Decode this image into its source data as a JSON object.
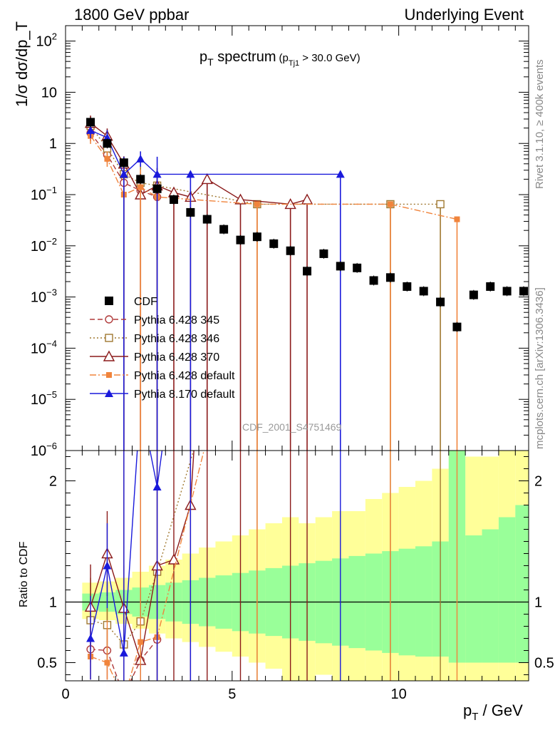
{
  "header": {
    "left": "1800 GeV ppbar",
    "right": "Underlying Event"
  },
  "side": {
    "top": "Rivet 3.1.10, ≥ 400k events",
    "bottom": "mcplots.cern.ch [arXiv:1306.3436]"
  },
  "watermark": "CDF_2001_S4751469",
  "chart_data": {
    "type": "scatter",
    "title": "p_T spectrum",
    "title_main": "p",
    "title_main_sub": "T",
    "title_rest": " spectrum",
    "title_cut_pre": "(p",
    "title_cut_sub": "Tj1",
    "title_cut_post": " > 30.0 GeV)",
    "xlabel_main": "p",
    "xlabel_sub": "T",
    "xlabel_post": " / GeV",
    "ylabel": "1/σ dσ/dp_T",
    "ratio_ylabel": "Ratio to CDF",
    "xlim": [
      0,
      13.9
    ],
    "ylim": [
      1e-06,
      200
    ],
    "ylog": true,
    "ratio_ylim": [
      0.35,
      2.25
    ],
    "x_ticks": [
      "0",
      "5",
      "10"
    ],
    "y_ticks": [
      {
        "m": "10",
        "e": "2"
      },
      {
        "m": "10",
        "e": ""
      },
      {
        "m": "1",
        "e": ""
      },
      {
        "m": "10",
        "e": "−1"
      },
      {
        "m": "10",
        "e": "−2"
      },
      {
        "m": "10",
        "e": "−3"
      },
      {
        "m": "10",
        "e": "−4"
      },
      {
        "m": "10",
        "e": "−5"
      },
      {
        "m": "10",
        "e": "−6"
      }
    ],
    "ratio_ticks": [
      "0.5",
      "1",
      "2"
    ],
    "legend_position": "lower-left",
    "cdf": {
      "name": "CDF",
      "x": [
        0.75,
        1.25,
        1.75,
        2.25,
        2.75,
        3.25,
        3.75,
        4.25,
        4.75,
        5.25,
        5.75,
        6.25,
        6.75,
        7.25,
        7.75,
        8.25,
        8.75,
        9.25,
        9.75,
        10.25,
        10.75,
        11.25,
        11.75,
        12.25,
        12.75,
        13.25,
        13.75
      ],
      "y": [
        2.6,
        1.0,
        0.42,
        0.2,
        0.13,
        0.08,
        0.045,
        0.033,
        0.021,
        0.013,
        0.015,
        0.011,
        0.008,
        0.0032,
        0.007,
        0.004,
        0.0037,
        0.0021,
        0.0024,
        0.0016,
        0.0013,
        0.0008,
        0.00026,
        0.0011,
        0.0016,
        0.0013,
        0.0013
      ],
      "stat1_low": [
        0.93,
        0.92,
        0.9,
        0.88,
        0.86,
        0.84,
        0.82,
        0.8,
        0.78,
        0.76,
        0.74,
        0.72,
        0.7,
        0.68,
        0.66,
        0.64,
        0.62,
        0.6,
        0.58,
        0.56,
        0.55,
        0.55,
        0.5,
        0.5,
        0.5,
        0.5,
        0.5
      ],
      "stat1_high": [
        1.07,
        1.08,
        1.1,
        1.12,
        1.14,
        1.16,
        1.18,
        1.2,
        1.22,
        1.24,
        1.26,
        1.28,
        1.3,
        1.32,
        1.34,
        1.36,
        1.38,
        1.4,
        1.42,
        1.44,
        1.46,
        1.5,
        2.4,
        1.55,
        1.6,
        1.7,
        1.8
      ],
      "stat2_low": [
        0.86,
        0.85,
        0.82,
        0.78,
        0.74,
        0.7,
        0.67,
        0.63,
        0.59,
        0.55,
        0.5,
        0.45,
        0.35,
        0.35,
        0.4,
        0.32,
        0.32,
        0.32,
        0.35,
        0.3,
        0.3,
        0.3,
        0.3,
        0.3,
        0.3,
        0.3,
        0.3
      ],
      "stat2_high": [
        1.16,
        1.17,
        1.2,
        1.25,
        1.3,
        1.35,
        1.4,
        1.45,
        1.5,
        1.55,
        1.6,
        1.65,
        1.7,
        1.65,
        1.7,
        1.75,
        1.75,
        1.85,
        1.9,
        1.95,
        2.0,
        2.1,
        2.4,
        2.2,
        2.2,
        2.3,
        2.3
      ]
    },
    "series": [
      {
        "name": "Pythia 6.428 345",
        "color": "#b03a3a",
        "marker": "open-circle",
        "dash": "7,4",
        "x": [
          0.75,
          1.25,
          1.75,
          2.25,
          2.75
        ],
        "y": [
          1.6,
          0.6,
          0.17,
          0.12,
          0.09
        ],
        "ratio": [
          0.61,
          0.6,
          0.23,
          0.52,
          0.69
        ]
      },
      {
        "name": "Pythia 6.428 346",
        "color": "#a07830",
        "marker": "open-square",
        "dash": "2,3",
        "x": [
          0.75,
          1.25,
          1.75,
          2.25,
          2.75,
          5.75,
          9.75,
          11.25
        ],
        "y": [
          2.2,
          0.8,
          0.25,
          0.17,
          0.15,
          0.065,
          0.065,
          0.065
        ],
        "ratio": [
          0.85,
          0.81,
          0.65,
          0.84,
          1.25,
          4.0,
          4.0,
          4.0
        ]
      },
      {
        "name": "Pythia 6.428 370",
        "color": "#8b1a1a",
        "marker": "open-triangle",
        "dash": "",
        "x": [
          0.75,
          1.25,
          1.75,
          2.25,
          2.75,
          3.25,
          3.75,
          4.25,
          5.25,
          6.75,
          7.25
        ],
        "y": [
          2.5,
          1.4,
          0.4,
          0.1,
          0.15,
          0.11,
          0.09,
          0.2,
          0.08,
          0.065,
          0.08
        ],
        "ratio": [
          0.96,
          1.4,
          0.95,
          0.52,
          1.3,
          1.35,
          1.8,
          4.0,
          4.0,
          4.0,
          4.0
        ]
      },
      {
        "name": "Pythia 6.428 default",
        "color": "#f0843c",
        "marker": "filled-square",
        "dash": "9,3,2,3",
        "x": [
          0.75,
          1.25,
          1.75,
          2.25,
          2.75,
          5.75,
          9.75,
          11.75
        ],
        "y": [
          1.4,
          0.5,
          0.1,
          0.14,
          0.09,
          0.065,
          0.065,
          0.033
        ],
        "ratio": [
          0.55,
          0.5,
          0.2,
          0.67,
          0.71,
          4.0,
          4.0,
          4.0
        ]
      },
      {
        "name": "Pythia 8.170 default",
        "color": "#1a1adb",
        "marker": "filled-triangle",
        "dash": "",
        "x": [
          0.75,
          1.25,
          1.75,
          2.25,
          2.75,
          3.75,
          8.25
        ],
        "y": [
          1.8,
          1.3,
          0.25,
          0.5,
          0.25,
          0.25,
          0.25
        ],
        "ratio": [
          0.7,
          1.3,
          0.58,
          2.65,
          1.95,
          4.0,
          4.0
        ]
      }
    ]
  }
}
